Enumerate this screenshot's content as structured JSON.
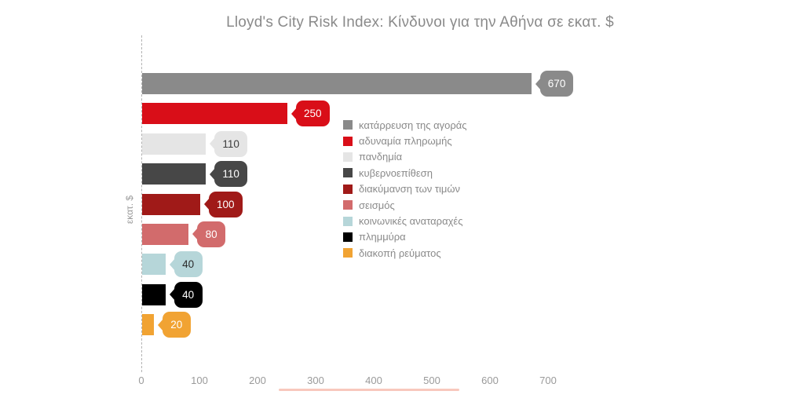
{
  "chart_data": {
    "type": "bar",
    "orientation": "horizontal",
    "title": "Lloyd's City Risk Index: Κίνδυνοι για την Αθήνα σε εκατ. $",
    "xlabel": "",
    "ylabel": "εκατ. $",
    "xlim": [
      0,
      740
    ],
    "x_ticks": [
      0,
      100,
      200,
      300,
      400,
      500,
      600,
      700
    ],
    "grid": false,
    "legend_position": "center-right",
    "series": [
      {
        "name": "κατάρρευση της αγοράς",
        "value": 670,
        "color": "#8a8a8a",
        "label_text_color": "#ffffff"
      },
      {
        "name": "αδυναμία πληρωμής",
        "value": 250,
        "color": "#d90e18",
        "label_text_color": "#ffffff"
      },
      {
        "name": "πανδημία",
        "value": 110,
        "color": "#e5e5e5",
        "label_text_color": "#3c3c3c"
      },
      {
        "name": "κυβερνοεπίθεση",
        "value": 110,
        "color": "#474747",
        "label_text_color": "#ffffff"
      },
      {
        "name": "διακύμανση των τιμών",
        "value": 100,
        "color": "#a01a18",
        "label_text_color": "#ffffff"
      },
      {
        "name": "σεισμός",
        "value": 80,
        "color": "#d26b6c",
        "label_text_color": "#ffffff"
      },
      {
        "name": "κοινωνικές αναταραχές",
        "value": 40,
        "color": "#b6d6d9",
        "label_text_color": "#2b2b2b"
      },
      {
        "name": "πλημμύρα",
        "value": 40,
        "color": "#000000",
        "label_text_color": "#ffffff"
      },
      {
        "name": "διακοπή ρεύματος",
        "value": 20,
        "color": "#f1a333",
        "label_text_color": "#ffffff"
      }
    ]
  },
  "style": {
    "background": "#ffffff",
    "title_color": "#8a8a8a",
    "tick_label_color": "#9a9a9a",
    "legend_text_color": "#8a8a8a",
    "axis_line_color": "#b3b3b3",
    "underline_color": "#f8c8bd"
  }
}
